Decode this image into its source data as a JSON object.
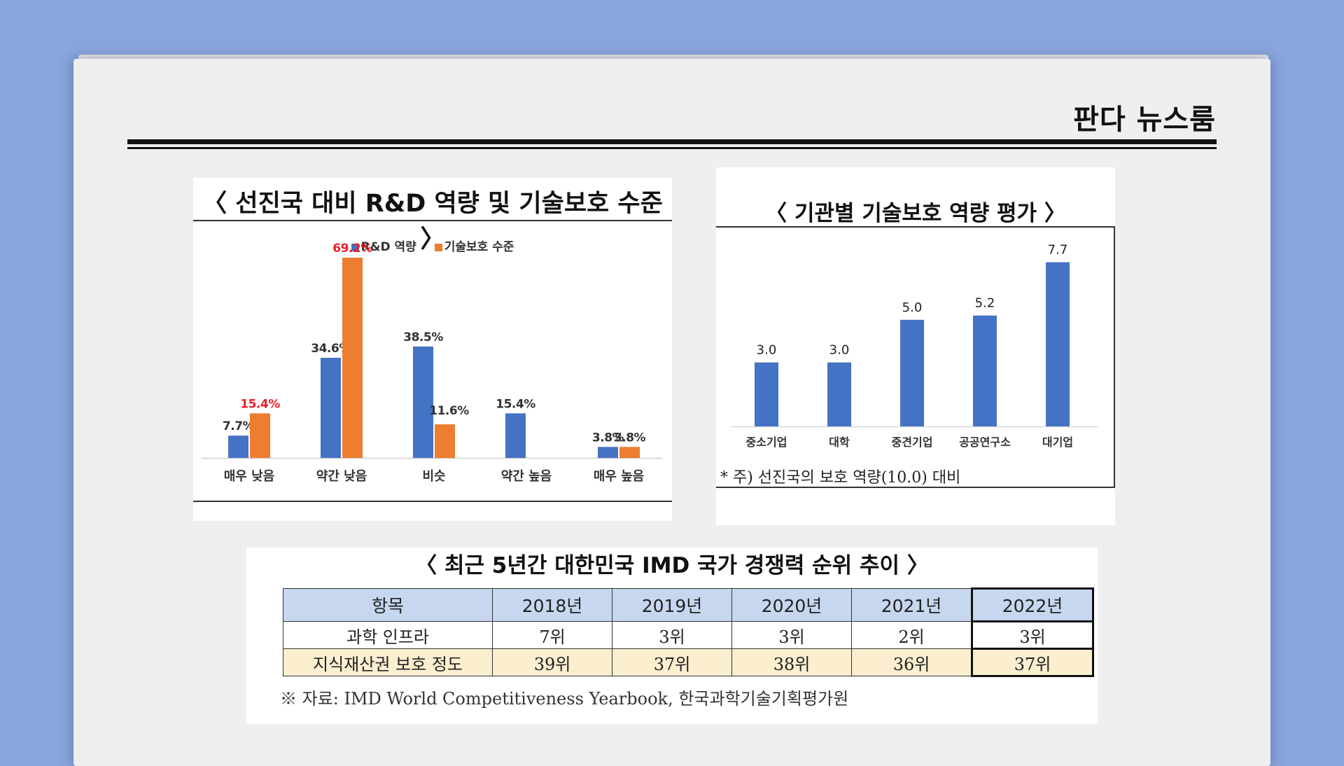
{
  "brand": "판다 뉴스룸",
  "charts": {
    "left": {
      "title": "〈 선진국 대비 R&D 역량 및 기술보호 수준 〉",
      "colors": {
        "rd": "#4472c4",
        "tech": "#ed7d31",
        "highlight_label": "#e8202a"
      }
    },
    "right": {
      "title": "〈 기관별 기술보호 역량 평가 〉",
      "note": "* 주) 선진국의 보호 역량(10.0) 대비",
      "color": "#4472c4"
    },
    "table": {
      "title": "〈 최근 5년간 대한민국 IMD 국가 경쟁력 순위 추이 〉",
      "headers": [
        "항목",
        "2018년",
        "2019년",
        "2020년",
        "2021년",
        "2022년"
      ],
      "rows": [
        [
          "과학 인프라",
          "7위",
          "3위",
          "3위",
          "2위",
          "3위"
        ],
        [
          "지식재산권 보호 정도",
          "39위",
          "37위",
          "38위",
          "36위",
          "37위"
        ]
      ],
      "source": "※ 자료: IMD World Competitiveness Yearbook, 한국과학기술기획평가원"
    }
  },
  "chart_data": [
    {
      "type": "bar",
      "title": "〈 선진국 대비 R&D 역량 및 기술보호 수준 〉",
      "categories": [
        "매우 낮음",
        "약간 낮음",
        "비슷",
        "약간 높음",
        "매우 높음"
      ],
      "series": [
        {
          "name": "R&D 역량",
          "values": [
            7.7,
            34.6,
            38.5,
            15.4,
            3.8
          ],
          "labels": [
            "7.7%",
            "34.6%",
            "38.5%",
            "15.4%",
            "3.8%"
          ]
        },
        {
          "name": "기술보호 수준",
          "values": [
            15.4,
            69.2,
            11.6,
            0,
            3.8
          ],
          "labels": [
            "15.4%",
            "69.2%",
            "11.6%",
            "",
            "3.8%"
          ]
        }
      ],
      "legend": "top-center",
      "ylim": [
        0,
        75
      ]
    },
    {
      "type": "bar",
      "title": "〈 기관별 기술보호 역량 평가 〉",
      "categories": [
        "중소기업",
        "대학",
        "중견기업",
        "공공연구소",
        "대기업"
      ],
      "values": [
        3.0,
        3.0,
        5.0,
        5.2,
        7.7
      ],
      "labels": [
        "3.0",
        "3.0",
        "5.0",
        "5.2",
        "7.7"
      ],
      "ylim": [
        0,
        8.5
      ]
    }
  ]
}
